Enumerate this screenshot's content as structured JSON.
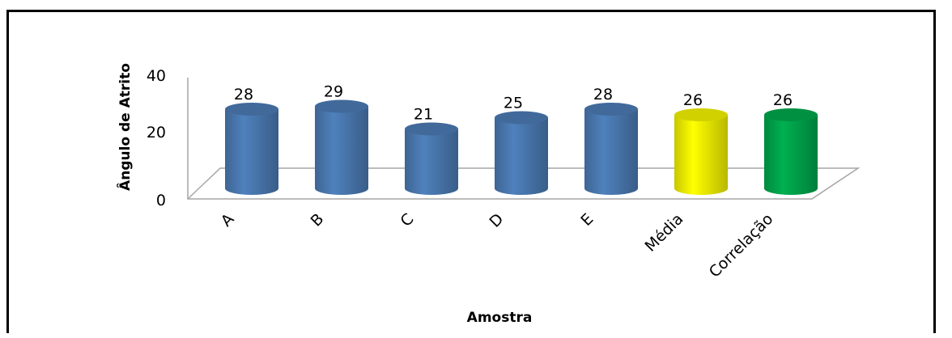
{
  "chart_data": {
    "type": "bar",
    "categories": [
      "A",
      "B",
      "C",
      "D",
      "E",
      "Média",
      "Correlação"
    ],
    "values": [
      28,
      29,
      21,
      25,
      28,
      26,
      26
    ],
    "title": "",
    "xlabel": "Amostra",
    "ylabel": "Ângulo de Atrito",
    "ylim": [
      0,
      40
    ],
    "yticks": [
      0,
      20,
      40
    ],
    "grid": false,
    "legend": "none",
    "colors": [
      "#4f81bd",
      "#4f81bd",
      "#4f81bd",
      "#4f81bd",
      "#4f81bd",
      "#ffff00",
      "#00b050"
    ]
  }
}
